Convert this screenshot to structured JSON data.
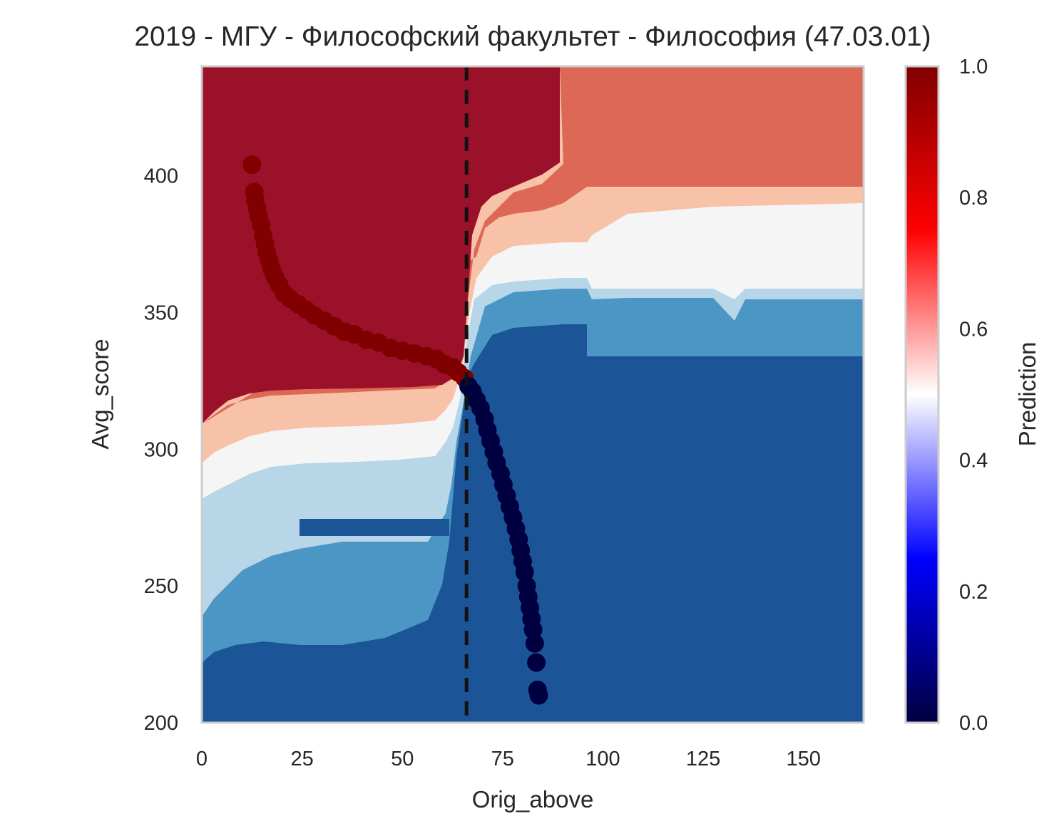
{
  "chart_data": {
    "type": "contour",
    "title": "2019 - МГУ - Философский факультет - Философия (47.03.01)",
    "xlabel": "Orig_above",
    "ylabel": "Avg_score",
    "xlim": [
      0,
      165
    ],
    "ylim": [
      200,
      440
    ],
    "xticks": [
      "0",
      "25",
      "50",
      "75",
      "100",
      "125",
      "150"
    ],
    "yticks": [
      "200",
      "250",
      "300",
      "350",
      "400"
    ],
    "colorbar": {
      "label": "Prediction",
      "range": [
        0,
        1
      ],
      "ticks": [
        "0.0",
        "0.2",
        "0.4",
        "0.6",
        "0.8",
        "1.0"
      ],
      "colormap": "seismic"
    },
    "threshold_x": 66,
    "contour_levels": [
      {
        "range": "0.0-0.125",
        "color": "#1b5597"
      },
      {
        "range": "0.125-0.25",
        "color": "#4b96c4"
      },
      {
        "range": "0.25-0.375",
        "color": "#b7d6e8"
      },
      {
        "range": "0.375-0.5",
        "color": "#f5f5f5"
      },
      {
        "range": "0.5-0.625",
        "color": "#f7c2a8"
      },
      {
        "range": "0.625-0.75",
        "color": "#dc6855"
      },
      {
        "range": "0.75-1.0",
        "color": "#9b1129"
      }
    ],
    "series": [
      {
        "prediction": 1,
        "color": "#800000",
        "x": [
          12.5,
          13.1,
          13.3,
          13.8,
          14.2,
          14.8,
          15.3,
          15.8,
          16.2,
          16.8,
          17.4,
          18.2,
          19.3,
          20.5,
          22,
          24,
          26,
          28,
          30.5,
          33,
          35.5,
          38,
          41,
          44,
          47,
          50,
          53,
          56,
          58.5,
          60.5,
          62.5,
          64,
          65.5
        ],
        "y": [
          404,
          394,
          391,
          388,
          385,
          382,
          378,
          375,
          372,
          369,
          366,
          363,
          360,
          357,
          355,
          353,
          351,
          349,
          347,
          345,
          343,
          342,
          340,
          339,
          337,
          336,
          335,
          334,
          333,
          331,
          330,
          328,
          326
        ]
      },
      {
        "prediction": 0,
        "color": "#000040",
        "x": [
          66.5,
          67.5,
          68.5,
          69.5,
          70.5,
          71.2,
          72,
          72.8,
          73.5,
          74.5,
          75.2,
          76,
          76.8,
          77.6,
          78.3,
          79,
          79.5,
          80,
          80.5,
          81,
          81.4,
          81.8,
          82.2,
          82.6,
          83,
          83.4,
          83.7,
          84
        ],
        "y": [
          323,
          321,
          318,
          315,
          311,
          307,
          303,
          299,
          295,
          291,
          287,
          283,
          279,
          275,
          271,
          267,
          263,
          259,
          255,
          250,
          246,
          242,
          238,
          234,
          229,
          222,
          212,
          210
        ]
      }
    ]
  }
}
